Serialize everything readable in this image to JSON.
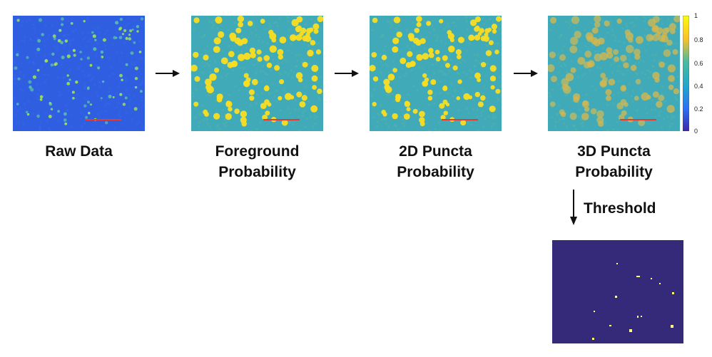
{
  "stages": [
    {
      "label_line1": "Raw Data",
      "label_line2": ""
    },
    {
      "label_line1": "Foreground",
      "label_line2": "Probability"
    },
    {
      "label_line1": "2D Puncta",
      "label_line2": "Probability"
    },
    {
      "label_line1": "3D Puncta",
      "label_line2": "Probability"
    }
  ],
  "threshold_label": "Threshold",
  "colorbar": {
    "ticks": [
      "1",
      "0.8",
      "0.6",
      "0.4",
      "0.2",
      "0"
    ],
    "colors": [
      "#f9fb0e",
      "#fac228",
      "#48bba0",
      "#21a8cb",
      "#2c72f4",
      "#3e26a8"
    ]
  },
  "colors": {
    "raw_background": "#2f5fe0",
    "prob_background": "#40aab8",
    "puncta": "#fadd20",
    "scale_bar": "#e83a2c",
    "binary_background": "#35297a",
    "binary_foreground": "#fffe80"
  }
}
